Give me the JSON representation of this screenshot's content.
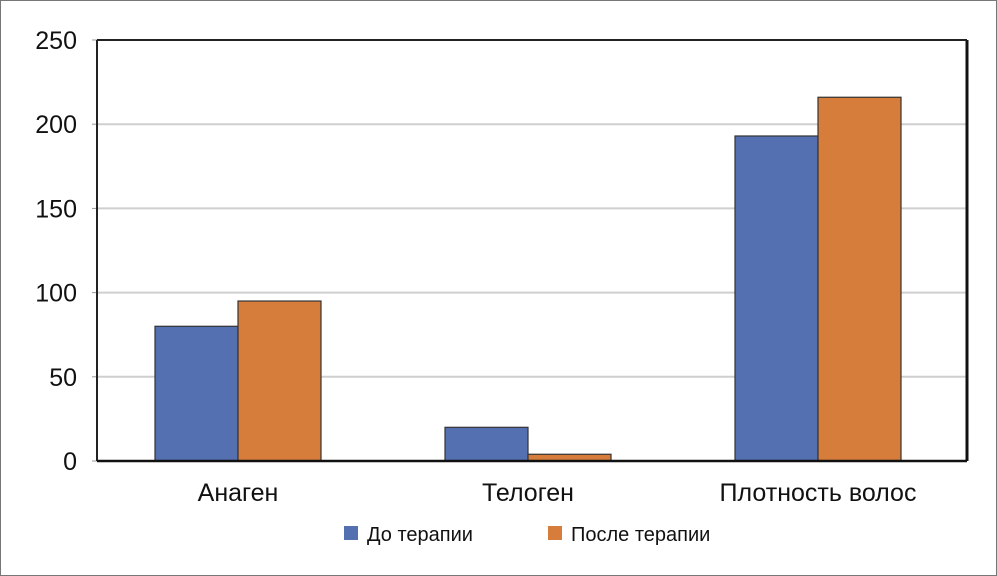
{
  "chart_data": {
    "type": "bar",
    "title": "",
    "xlabel": "",
    "ylabel": "",
    "categories": [
      "Анаген",
      "Телоген",
      "Плотность волос"
    ],
    "series": [
      {
        "name": "До терапии",
        "color": "#5470b0",
        "values": [
          80,
          20,
          193
        ]
      },
      {
        "name": "После терапии",
        "color": "#d67d3b",
        "values": [
          95,
          4,
          216
        ]
      }
    ],
    "ylim": [
      0,
      250
    ],
    "yticks": [
      0,
      50,
      100,
      150,
      200,
      250
    ],
    "grid": true,
    "legend": "bottom-center"
  }
}
